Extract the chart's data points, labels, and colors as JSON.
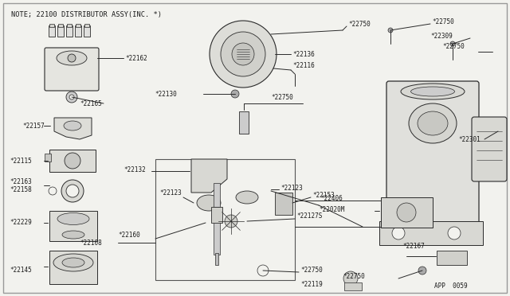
{
  "title": "NOTE; 22100 DISTRIBUTOR ASSY(INC. *)",
  "page_ref": "APP  0059",
  "bg_color": "#f2f2ee",
  "line_color": "#2a2a2a",
  "text_color": "#1a1a1a",
  "border_color": "#888888"
}
